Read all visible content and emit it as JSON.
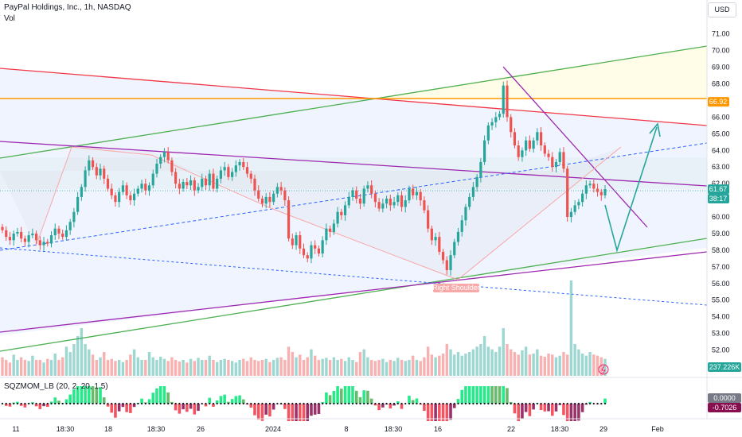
{
  "header": {
    "title": "PayPal Holdings, Inc., 1h, NASDAQ",
    "volume_label": "Vol",
    "currency": "USD"
  },
  "colors": {
    "up": "#26a69a",
    "down": "#ef5350",
    "upper_green_line": "#4caf50",
    "red_line": "#f23645",
    "orange_line": "#ff9800",
    "purple_line": "#9c27b0",
    "blue_dashed": "#2962ff",
    "arrow": "#26a69a"
  },
  "chart_data": {
    "type": "candlestick",
    "title": "PayPal Holdings, Inc., 1h, NASDAQ",
    "ylim": [
      50.4,
      71.8
    ],
    "yticks": [
      52.0,
      53.0,
      54.0,
      55.0,
      56.0,
      57.0,
      58.0,
      59.0,
      60.0,
      62.0,
      63.0,
      64.0,
      65.0,
      66.0,
      68.0,
      69.0,
      70.0,
      71.0
    ],
    "x_labels": [
      "11",
      "18:30",
      "18",
      "18:30",
      "26",
      "2024",
      "8",
      "18:30",
      "16",
      "22",
      "18:30",
      "29",
      "Feb"
    ],
    "price_badges": [
      {
        "label": "66.92",
        "value": 66.92,
        "color": "#ff9800"
      },
      {
        "label": "61.67",
        "value": 61.67,
        "color": "#26a69a"
      },
      {
        "label": "38:17",
        "value": 61.1,
        "color": "#26a69a"
      }
    ],
    "volume_badge": "237.226K",
    "pattern_label": "Right Shoulder",
    "closes": [
      59.2,
      58.8,
      58.6,
      59.0,
      59.1,
      58.7,
      58.5,
      58.9,
      59.0,
      58.6,
      58.3,
      58.5,
      58.4,
      58.9,
      59.3,
      59.0,
      58.8,
      59.2,
      59.7,
      60.3,
      61.2,
      61.8,
      62.8,
      63.4,
      63.0,
      62.5,
      62.9,
      62.3,
      61.7,
      61.3,
      60.9,
      61.5,
      61.9,
      61.3,
      61.0,
      61.4,
      61.7,
      62.0,
      61.6,
      61.9,
      62.6,
      63.2,
      63.6,
      63.9,
      63.4,
      62.7,
      62.0,
      61.7,
      62.1,
      61.9,
      62.2,
      61.6,
      61.8,
      62.3,
      61.9,
      62.6,
      61.7,
      62.3,
      62.8,
      63.0,
      62.4,
      62.7,
      63.1,
      63.3,
      63.0,
      62.6,
      62.3,
      61.6,
      61.1,
      60.8,
      61.2,
      60.9,
      61.4,
      61.8,
      61.6,
      61.0,
      58.7,
      58.3,
      58.9,
      58.1,
      57.7,
      57.5,
      58.3,
      58.1,
      57.8,
      58.6,
      59.3,
      59.1,
      59.6,
      60.3,
      60.1,
      60.7,
      61.2,
      61.6,
      61.1,
      60.8,
      61.7,
      61.9,
      61.4,
      60.9,
      60.5,
      60.8,
      61.1,
      60.7,
      60.9,
      61.3,
      60.6,
      61.0,
      61.7,
      61.3,
      61.5,
      61.0,
      60.4,
      59.3,
      58.6,
      58.8,
      57.9,
      57.4,
      56.8,
      57.7,
      58.5,
      59.1,
      59.8,
      60.6,
      61.2,
      61.8,
      62.4,
      63.3,
      64.6,
      65.5,
      65.7,
      66.0,
      66.2,
      67.9,
      66.0,
      65.1,
      64.3,
      63.6,
      64.0,
      64.6,
      64.1,
      64.6,
      65.1,
      64.3,
      63.8,
      63.6,
      63.0,
      63.3,
      63.9,
      62.9,
      60.0,
      60.3,
      60.7,
      60.9,
      61.4,
      61.9,
      62.0,
      61.7,
      61.5,
      61.3,
      61.67
    ],
    "volumes": [
      0.35,
      0.3,
      0.25,
      0.4,
      0.3,
      0.35,
      0.3,
      0.28,
      0.38,
      0.3,
      0.3,
      0.25,
      0.32,
      0.3,
      0.42,
      0.3,
      0.35,
      0.55,
      0.45,
      0.6,
      0.75,
      0.9,
      0.6,
      0.5,
      0.4,
      0.3,
      0.35,
      0.45,
      0.3,
      0.32,
      0.28,
      0.3,
      0.26,
      0.3,
      0.4,
      0.5,
      0.35,
      0.3,
      0.3,
      0.45,
      0.35,
      0.3,
      0.36,
      0.32,
      0.28,
      0.35,
      0.3,
      0.27,
      0.3,
      0.25,
      0.32,
      0.28,
      0.34,
      0.3,
      0.3,
      0.38,
      0.3,
      0.26,
      0.3,
      0.32,
      0.3,
      0.28,
      0.25,
      0.3,
      0.32,
      0.28,
      0.35,
      0.3,
      0.28,
      0.3,
      0.32,
      0.26,
      0.3,
      0.34,
      0.35,
      0.3,
      0.55,
      0.45,
      0.35,
      0.4,
      0.3,
      0.35,
      0.5,
      0.38,
      0.3,
      0.32,
      0.34,
      0.3,
      0.35,
      0.3,
      0.32,
      0.28,
      0.35,
      0.3,
      0.26,
      0.45,
      0.5,
      0.35,
      0.3,
      0.28,
      0.3,
      0.32,
      0.26,
      0.3,
      0.28,
      0.34,
      0.3,
      0.28,
      0.3,
      0.38,
      0.3,
      0.28,
      0.35,
      0.55,
      0.4,
      0.35,
      0.38,
      0.42,
      0.6,
      0.5,
      0.4,
      0.45,
      0.38,
      0.42,
      0.45,
      0.5,
      0.55,
      0.6,
      0.75,
      0.55,
      0.5,
      0.45,
      0.55,
      0.9,
      0.6,
      0.5,
      0.45,
      0.4,
      0.48,
      0.55,
      0.4,
      0.42,
      0.5,
      0.38,
      0.36,
      0.42,
      0.4,
      0.35,
      0.38,
      0.45,
      0.4,
      1.8,
      0.6,
      0.5,
      0.42,
      0.38,
      0.45,
      0.4,
      0.38,
      0.35,
      0.32,
      0.3,
      0.35
    ],
    "indicator": {
      "name": "SQZMOM_LB (20, 2, 20, 1.5)",
      "value_badges": [
        "0.0000",
        "-0.7026"
      ]
    }
  }
}
